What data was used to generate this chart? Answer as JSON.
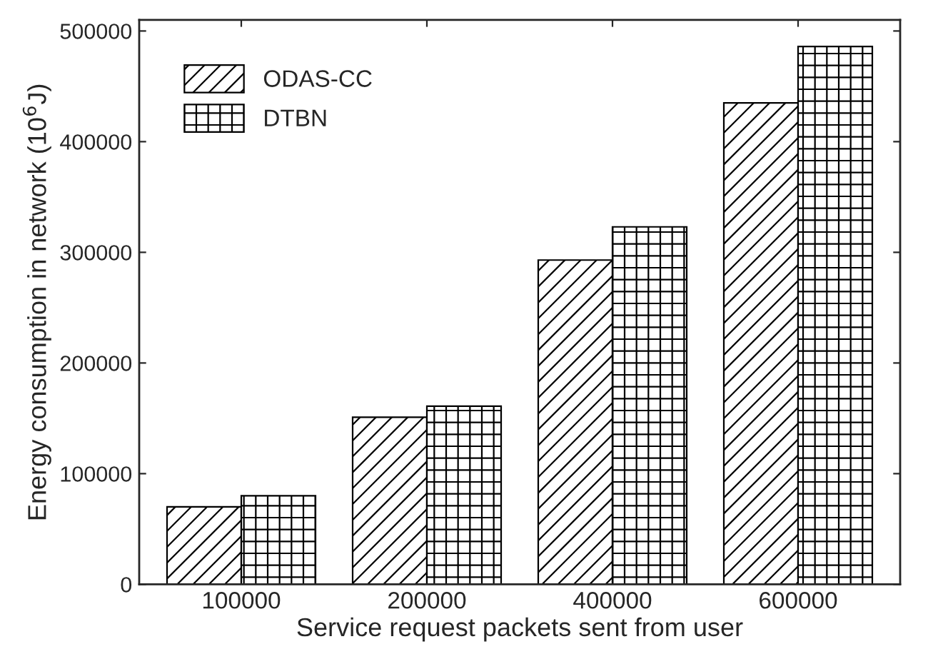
{
  "chart_data": {
    "type": "bar",
    "xlabel": "Service request packets sent from user",
    "ylabel": "Energy consumption in network (10$^{6}$J)",
    "categories": [
      "100000",
      "200000",
      "400000",
      "600000"
    ],
    "series": [
      {
        "name": "ODAS-CC",
        "color": "#000000",
        "values": [
          70000,
          151000,
          293000,
          435000
        ]
      },
      {
        "name": "DTBN",
        "color": "#000000",
        "values": [
          80000,
          161000,
          323000,
          486000
        ]
      }
    ],
    "ylim": [
      0,
      510000
    ],
    "yticks": [
      0,
      100000,
      200000,
      300000,
      400000,
      500000
    ],
    "legend": "top left",
    "grid": false
  }
}
